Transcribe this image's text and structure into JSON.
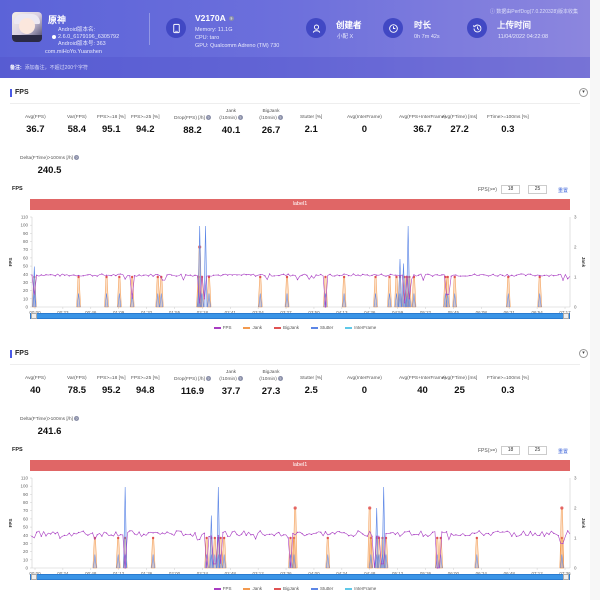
{
  "header": {
    "app_name": "原神",
    "android_version_name_label": "Android版本名:",
    "android_version_name": "2.6.0_6179196_6305792",
    "android_version_code_label": "Android版本号:",
    "android_version_code": "363",
    "package": "com.miHoYo.Yuanshen",
    "device_model": "V2170A",
    "memory": "Memory: 11.1G",
    "cpu": "CPU: taro",
    "gpu": "GPU: Qualcomm Adreno (TM) 730",
    "creator_label": "创建者",
    "creator_value": "小配 X",
    "duration_label": "时长",
    "duration_value": "0h 7m 42s",
    "upload_label": "上传时间",
    "upload_value": "11/04/2022 04:22:08",
    "note_text": "ⓘ 数据由PerfDog(7.0.220328)版本收集",
    "remark_label": "备注:",
    "remark_placeholder": "添加备注，不超过200个字符",
    "colors": {
      "accent": "#5b63d8",
      "icon_circle": "#4148c4"
    }
  },
  "sections": [
    {
      "title": "FPS",
      "metrics": [
        {
          "label": "Avg(FPS)",
          "value": "36.7"
        },
        {
          "label": "Var(FPS)",
          "value": "58.4"
        },
        {
          "label": "FPS>=18 [%]",
          "value": "95.1"
        },
        {
          "label": "FPS>=25 [%]",
          "value": "94.2"
        },
        {
          "label": "Drop(FPS) [/h]",
          "value": "88.2",
          "help": true
        },
        {
          "label": "Jank (/10min)",
          "value": "40.1",
          "help": true
        },
        {
          "label": "BigJank (/10min)",
          "value": "26.7",
          "help": true
        },
        {
          "label": "Stutter [%]",
          "value": "2.1"
        },
        {
          "label": "Avg(InterFrame)",
          "value": "0"
        },
        {
          "label": "Avg(FPS+InterFrame)",
          "value": "36.7"
        },
        {
          "label": "Avg(FTime) [ms]",
          "value": "27.2"
        },
        {
          "label": "FTime>=100ms [%]",
          "value": "0.3"
        },
        {
          "label": "Delta(FTime)>100ms [/h]",
          "value": "240.5",
          "help": true
        }
      ],
      "chart_title": "FPS",
      "fps_filter_label": "FPS(>=)",
      "fps_filter_1": "18",
      "fps_filter_2": "25",
      "reset_label": "重置",
      "label_bar": "label1"
    },
    {
      "title": "FPS",
      "metrics": [
        {
          "label": "Avg(FPS)",
          "value": "40"
        },
        {
          "label": "Var(FPS)",
          "value": "78.5"
        },
        {
          "label": "FPS>=18 [%]",
          "value": "95.2"
        },
        {
          "label": "FPS>=25 [%]",
          "value": "94.8"
        },
        {
          "label": "Drop(FPS) [/h]",
          "value": "116.9",
          "help": true
        },
        {
          "label": "Jank (/10min)",
          "value": "37.7",
          "help": true
        },
        {
          "label": "BigJank (/10min)",
          "value": "27.3",
          "help": true
        },
        {
          "label": "Stutter [%]",
          "value": "2.5"
        },
        {
          "label": "Avg(InterFrame)",
          "value": "0"
        },
        {
          "label": "Avg(FPS+InterFrame)",
          "value": "40"
        },
        {
          "label": "Avg(FTime) [ms]",
          "value": "25"
        },
        {
          "label": "FTime>=100ms [%]",
          "value": "0.3"
        },
        {
          "label": "Delta(FTime)>100ms [/h]",
          "value": "241.6",
          "help": true
        }
      ],
      "chart_title": "FPS",
      "fps_filter_label": "FPS(>=)",
      "fps_filter_1": "18",
      "fps_filter_2": "25",
      "reset_label": "重置",
      "label_bar": "label1"
    }
  ],
  "chart_data": [
    {
      "type": "line",
      "title": "FPS",
      "ylabel": "FPS",
      "y2label": "Jank",
      "ylim": [
        0,
        110
      ],
      "y2lim": [
        0,
        3
      ],
      "yticks": [
        "0",
        "10",
        "20",
        "30",
        "40",
        "50",
        "60",
        "70",
        "80",
        "90",
        "100",
        "110"
      ],
      "y2ticks": [
        "0",
        "1",
        "2",
        "3"
      ],
      "xticks": [
        "00:00",
        "00:23",
        "00:46",
        "01:09",
        "01:32",
        "01:55",
        "02:18",
        "02:41",
        "03:04",
        "03:27",
        "03:50",
        "04:13",
        "04:36",
        "04:59",
        "05:22",
        "05:45",
        "06:08",
        "06:31",
        "06:54",
        "07:17"
      ],
      "duration_s": 462,
      "fps_baseline": 39,
      "jank_events_s": [
        2,
        40,
        64,
        75,
        86,
        108,
        111,
        143,
        146,
        152,
        196,
        219,
        252,
        268,
        295,
        307,
        313,
        316,
        320,
        322,
        324,
        328,
        355,
        357,
        363,
        409,
        436
      ],
      "bigjank_events_s": [
        144
      ],
      "stutter_spikes": [
        {
          "t": 2,
          "v": 1.35
        },
        {
          "t": 144,
          "v": 2.7
        },
        {
          "t": 149,
          "v": 2.7
        },
        {
          "t": 316,
          "v": 1.6
        },
        {
          "t": 319,
          "v": 1.45
        },
        {
          "t": 323,
          "v": 2.7
        }
      ],
      "fps_dips": [
        {
          "t": 2,
          "v": 15
        },
        {
          "t": 86,
          "v": 10
        },
        {
          "t": 144,
          "v": 5
        },
        {
          "t": 148,
          "v": 10
        },
        {
          "t": 252,
          "v": 0
        },
        {
          "t": 320,
          "v": 5
        },
        {
          "t": 324,
          "v": 10
        },
        {
          "t": 357,
          "v": 15
        }
      ],
      "legend": [
        "FPS",
        "Jank",
        "BigJank",
        "Stutter",
        "InterFrame"
      ],
      "legend_position": "bottom",
      "colors": {
        "FPS": "#a83cc2",
        "Jank": "#f39a4f",
        "BigJank": "#e05252",
        "Stutter": "#5c86e6",
        "InterFrame": "#5fc8e8"
      }
    },
    {
      "type": "line",
      "title": "FPS",
      "ylabel": "FPS",
      "y2label": "Jank",
      "ylim": [
        0,
        110
      ],
      "y2lim": [
        0,
        3
      ],
      "yticks": [
        "0",
        "10",
        "20",
        "30",
        "40",
        "50",
        "60",
        "70",
        "80",
        "90",
        "100",
        "110"
      ],
      "y2ticks": [
        "0",
        "1",
        "2",
        "3"
      ],
      "xticks": [
        "00:00",
        "00:24",
        "00:48",
        "01:12",
        "01:36",
        "02:00",
        "02:24",
        "02:48",
        "03:12",
        "03:36",
        "04:00",
        "04:24",
        "04:48",
        "05:12",
        "05:36",
        "06:00",
        "06:24",
        "06:48",
        "07:12",
        "07:36"
      ],
      "duration_s": 462,
      "fps_baseline": 42,
      "jank_events_s": [
        54,
        74,
        80,
        104,
        150,
        154,
        157,
        160,
        162,
        165,
        222,
        225,
        254,
        291,
        296,
        298,
        301,
        304,
        348,
        351,
        382,
        455
      ],
      "bigjank_events_s": [
        226,
        290,
        455
      ],
      "stutter_spikes": [
        {
          "t": 80,
          "v": 2.7
        },
        {
          "t": 154,
          "v": 1.75
        },
        {
          "t": 160,
          "v": 2.7
        },
        {
          "t": 296,
          "v": 2.0
        },
        {
          "t": 302,
          "v": 2.7
        }
      ],
      "fps_dips": [
        {
          "t": 80,
          "v": 0
        },
        {
          "t": 150,
          "v": 0
        },
        {
          "t": 157,
          "v": 5
        },
        {
          "t": 162,
          "v": 5
        },
        {
          "t": 222,
          "v": 0
        },
        {
          "t": 294,
          "v": 0
        },
        {
          "t": 301,
          "v": 5
        },
        {
          "t": 349,
          "v": 0
        },
        {
          "t": 455,
          "v": 30
        }
      ],
      "legend": [
        "FPS",
        "Jank",
        "BigJank",
        "Stutter",
        "InterFrame"
      ],
      "legend_position": "bottom",
      "colors": {
        "FPS": "#a83cc2",
        "Jank": "#f39a4f",
        "BigJank": "#e05252",
        "Stutter": "#5c86e6",
        "InterFrame": "#5fc8e8"
      }
    }
  ]
}
